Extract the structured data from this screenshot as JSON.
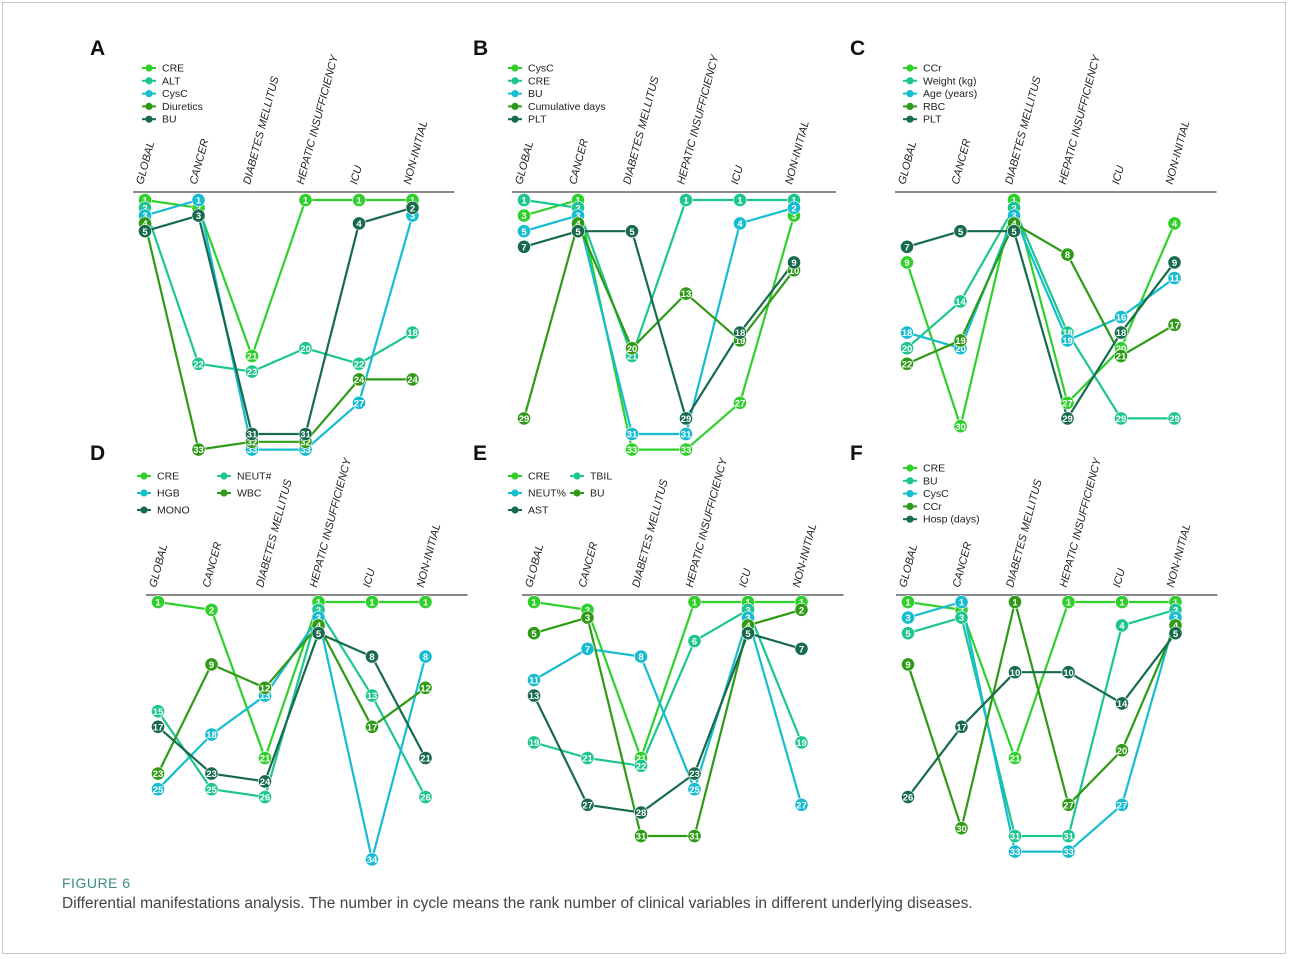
{
  "caption": {
    "label": "FIGURE 6",
    "text": "Differential manifestations analysis. The number in cycle means the rank number of clinical variables in different underlying diseases."
  },
  "categories": [
    "GLOBAL",
    "CANCER",
    "DIABETES MELLITUS",
    "HEPATIC INSUFFICIENCY",
    "ICU",
    "NON-INITIAL"
  ],
  "series_colors": [
    "#2fd02b",
    "#1cc68e",
    "#16bcd0",
    "#2e9a16",
    "#176b4c"
  ],
  "chart_data": [
    {
      "panel": "A",
      "type": "line",
      "categories": [
        "GLOBAL",
        "CANCER",
        "DIABETES MELLITUS",
        "HEPATIC INSUFFICIENCY",
        "ICU",
        "NON-INITIAL"
      ],
      "y_axis": "rank (1 = top), inverted",
      "ylim": [
        1,
        34
      ],
      "legend_position": "top-left",
      "series": [
        {
          "name": "CRE",
          "values": [
            1,
            2,
            21,
            1,
            1,
            1
          ]
        },
        {
          "name": "ALT",
          "values": [
            2,
            22,
            23,
            20,
            22,
            18
          ]
        },
        {
          "name": "CysC",
          "values": [
            3,
            1,
            33,
            33,
            27,
            3
          ]
        },
        {
          "name": "Diuretics",
          "values": [
            4,
            33,
            32,
            32,
            24,
            24
          ]
        },
        {
          "name": "BU",
          "values": [
            5,
            3,
            31,
            31,
            4,
            2
          ]
        }
      ]
    },
    {
      "panel": "B",
      "type": "line",
      "categories": [
        "GLOBAL",
        "CANCER",
        "DIABETES MELLITUS",
        "HEPATIC INSUFFICIENCY",
        "ICU",
        "NON-INITIAL"
      ],
      "y_axis": "rank (1 = top), inverted",
      "ylim": [
        1,
        34
      ],
      "legend_position": "top-left",
      "series": [
        {
          "name": "CysC",
          "values": [
            3,
            1,
            33,
            33,
            27,
            3
          ]
        },
        {
          "name": "CRE",
          "values": [
            1,
            2,
            21,
            1,
            1,
            1
          ]
        },
        {
          "name": "BU",
          "values": [
            5,
            3,
            31,
            31,
            4,
            2
          ]
        },
        {
          "name": "Cumulative days",
          "values": [
            29,
            4,
            20,
            13,
            19,
            10
          ]
        },
        {
          "name": "PLT",
          "values": [
            7,
            5,
            5,
            29,
            18,
            9
          ]
        }
      ]
    },
    {
      "panel": "C",
      "type": "line",
      "categories": [
        "GLOBAL",
        "CANCER",
        "DIABETES MELLITUS",
        "HEPATIC INSUFFICIENCY",
        "ICU",
        "NON-INITIAL"
      ],
      "y_axis": "rank (1 = top), inverted",
      "ylim": [
        1,
        34
      ],
      "legend_position": "top-left",
      "series": [
        {
          "name": "CCr",
          "values": [
            9,
            30,
            1,
            27,
            20,
            4
          ]
        },
        {
          "name": "Weight (kg)",
          "values": [
            20,
            14,
            2,
            18,
            29,
            29
          ]
        },
        {
          "name": "Age (years)",
          "values": [
            18,
            20,
            3,
            19,
            16,
            11
          ]
        },
        {
          "name": "RBC",
          "values": [
            22,
            19,
            4,
            8,
            21,
            17
          ]
        },
        {
          "name": "PLT",
          "values": [
            7,
            5,
            5,
            29,
            18,
            9
          ]
        }
      ]
    },
    {
      "panel": "D",
      "type": "line",
      "categories": [
        "GLOBAL",
        "CANCER",
        "DIABETES MELLITUS",
        "HEPATIC INSUFFICIENCY",
        "ICU",
        "NON-INITIAL"
      ],
      "y_axis": "rank (1 = top), inverted",
      "ylim": [
        1,
        34
      ],
      "legend_position": "top-left",
      "series": [
        {
          "name": "CRE",
          "values": [
            1,
            2,
            21,
            1,
            1,
            1
          ]
        },
        {
          "name": "NEUT#",
          "values": [
            15,
            25,
            26,
            2,
            13,
            26
          ]
        },
        {
          "name": "HGB",
          "values": [
            25,
            18,
            13,
            3,
            34,
            8
          ]
        },
        {
          "name": "WBC",
          "values": [
            23,
            9,
            12,
            4,
            17,
            12
          ]
        },
        {
          "name": "MONO",
          "values": [
            17,
            23,
            24,
            5,
            8,
            21
          ]
        }
      ]
    },
    {
      "panel": "E",
      "type": "line",
      "categories": [
        "GLOBAL",
        "CANCER",
        "DIABETES MELLITUS",
        "HEPATIC INSUFFICIENCY",
        "ICU",
        "NON-INITIAL"
      ],
      "y_axis": "rank (1 = top), inverted",
      "ylim": [
        1,
        34
      ],
      "legend_position": "top-left",
      "series": [
        {
          "name": "CRE",
          "values": [
            1,
            2,
            21,
            1,
            1,
            1
          ]
        },
        {
          "name": "TBIL",
          "values": [
            19,
            21,
            22,
            6,
            2,
            19
          ]
        },
        {
          "name": "NEUT%",
          "values": [
            11,
            7,
            8,
            25,
            3,
            27
          ]
        },
        {
          "name": "BU",
          "values": [
            5,
            3,
            31,
            31,
            4,
            2
          ]
        },
        {
          "name": "AST",
          "values": [
            13,
            27,
            28,
            23,
            5,
            7
          ]
        }
      ]
    },
    {
      "panel": "F",
      "type": "line",
      "categories": [
        "GLOBAL",
        "CANCER",
        "DIABETES MELLITUS",
        "HEPATIC INSUFFICIENCY",
        "ICU",
        "NON-INITIAL"
      ],
      "y_axis": "rank (1 = top), inverted",
      "ylim": [
        1,
        34
      ],
      "legend_position": "top-left",
      "series": [
        {
          "name": "CRE",
          "values": [
            1,
            2,
            21,
            1,
            1,
            1
          ]
        },
        {
          "name": "BU",
          "values": [
            5,
            3,
            31,
            31,
            4,
            2
          ]
        },
        {
          "name": "CysC",
          "values": [
            3,
            1,
            33,
            33,
            27,
            3
          ]
        },
        {
          "name": "CCr",
          "values": [
            9,
            30,
            1,
            27,
            20,
            4
          ]
        },
        {
          "name": "Hosp (days)",
          "values": [
            26,
            17,
            10,
            10,
            14,
            5
          ]
        }
      ]
    }
  ]
}
